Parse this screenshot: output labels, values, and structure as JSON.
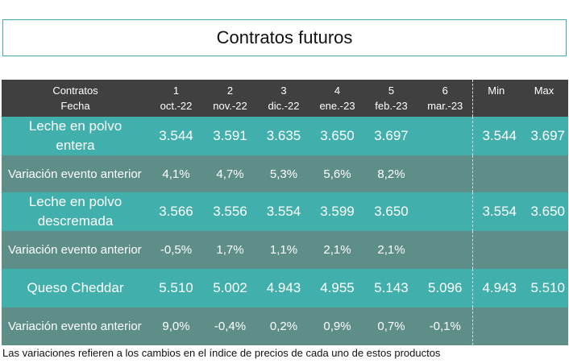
{
  "title": "Contratos futuros",
  "header": {
    "label_top": "Contratos",
    "label_bottom": "Fecha",
    "columns": [
      {
        "num": "1",
        "date": "oct.-22"
      },
      {
        "num": "2",
        "date": "nov.-22"
      },
      {
        "num": "3",
        "date": "dic.-22"
      },
      {
        "num": "4",
        "date": "ene.-23"
      },
      {
        "num": "5",
        "date": "feb.-23"
      },
      {
        "num": "6",
        "date": "mar.-23"
      }
    ],
    "min": "Min",
    "max": "Max"
  },
  "rows": [
    {
      "label_line1": "Leche en polvo",
      "label_line2": "entera",
      "values": [
        "3.544",
        "3.591",
        "3.635",
        "3.650",
        "3.697",
        ""
      ],
      "min": "3.544",
      "max": "3.697",
      "variation_label": "Variación evento anterior",
      "variations": [
        "4,1%",
        "4,7%",
        "5,3%",
        "5,6%",
        "8,2%",
        ""
      ]
    },
    {
      "label_line1": "Leche en polvo",
      "label_line2": "descremada",
      "values": [
        "3.566",
        "3.556",
        "3.554",
        "3.599",
        "3.650",
        ""
      ],
      "min": "3.554",
      "max": "3.650",
      "variation_label": "Variación evento anterior",
      "variations": [
        "-0,5%",
        "1,7%",
        "1,1%",
        "2,1%",
        "2,1%",
        ""
      ]
    },
    {
      "label_line1": "Queso Cheddar",
      "label_line2": "",
      "values": [
        "5.510",
        "5.002",
        "4.943",
        "4.955",
        "5.143",
        "5.096"
      ],
      "min": "4.943",
      "max": "5.510",
      "variation_label": "Variación evento anterior",
      "variations": [
        "9,0%",
        "-0,4%",
        "0,2%",
        "0,9%",
        "0,7%",
        "-0,1%"
      ]
    }
  ],
  "footnote": "Las variaciones refieren a los cambios en el índice de precios de cada uno de estos productos"
}
